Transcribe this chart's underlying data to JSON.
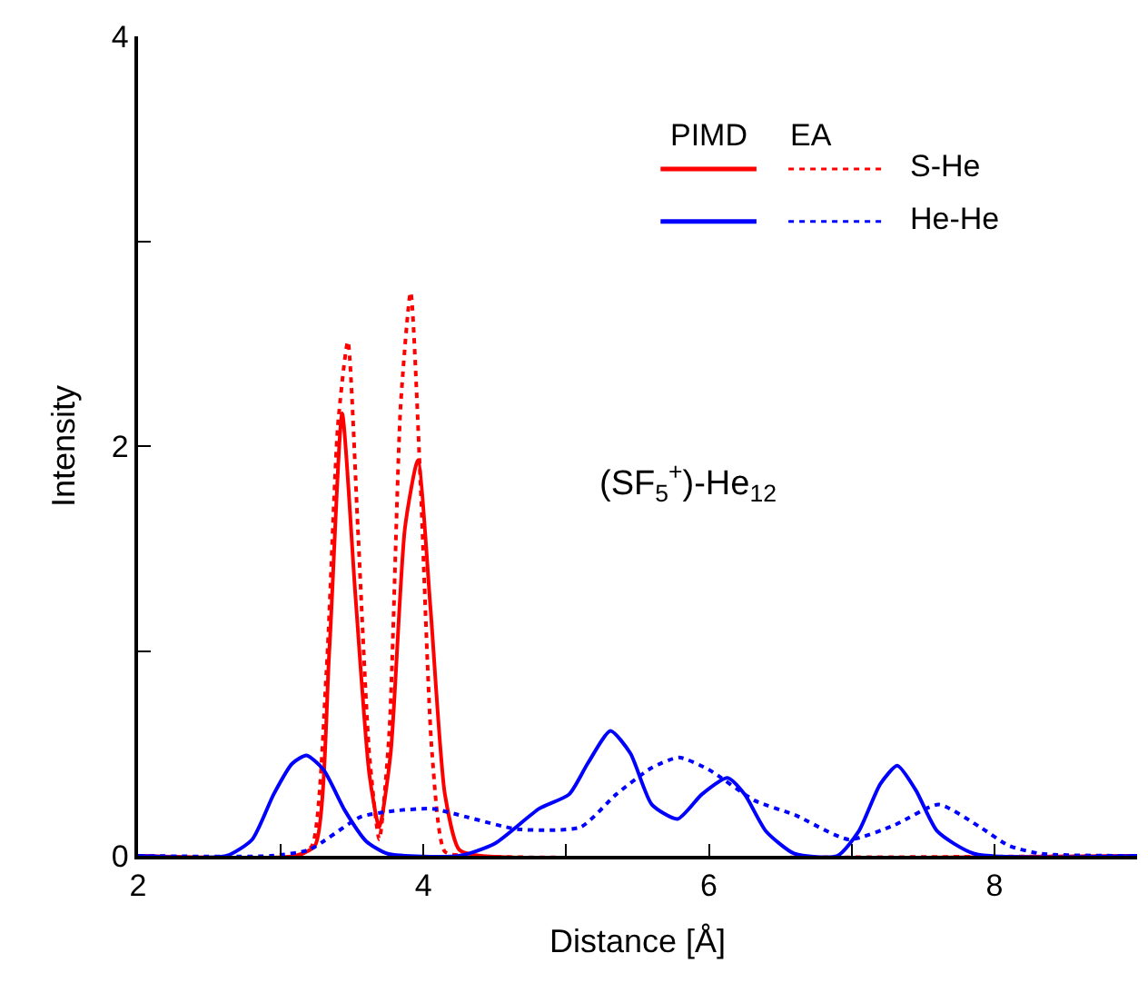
{
  "chart_data": {
    "type": "line",
    "xlabel": "Distance [Å]",
    "ylabel": "Intensity",
    "xlim": [
      2,
      9
    ],
    "xticks": [
      2,
      {
        "value": 3,
        "label": null
      },
      4,
      {
        "value": 5,
        "label": null
      },
      6,
      {
        "value": 7,
        "label": null
      },
      8
    ],
    "ylim": [
      0,
      4
    ],
    "yticks": [
      0,
      {
        "value": 1,
        "label": null
      },
      2,
      {
        "value": 3,
        "label": null
      },
      4
    ],
    "legend": "top right",
    "marker": "none",
    "annotations": [
      "PIMD",
      "EA",
      "(SF$_{5}$$^{+}$)-He$_{12}$"
    ],
    "series": [
      {
        "color": "#ff0000",
        "line_style": "solid",
        "x": [
          2,
          3.1,
          3.24,
          3.34,
          3.43,
          3.52,
          3.62,
          3.69,
          3.77,
          3.87,
          3.96,
          4.05,
          4.15,
          4.25,
          4.4,
          9
        ],
        "values": [
          0,
          0,
          0.05,
          1.0,
          2.16,
          1.3,
          0.4,
          0.14,
          0.5,
          1.6,
          1.93,
          1.2,
          0.3,
          0.03,
          0,
          0
        ]
      },
      {
        "name": "S-He",
        "color": "#ff0000",
        "line_style": "dotted",
        "x": [
          2,
          3.12,
          3.22,
          3.32,
          3.4,
          3.47,
          3.54,
          3.62,
          3.69,
          3.76,
          3.84,
          3.91,
          3.98,
          4.06,
          4.15,
          4.3,
          9
        ],
        "values": [
          0,
          0,
          0.05,
          0.9,
          2.1,
          2.51,
          1.6,
          0.5,
          0.08,
          0.6,
          2.2,
          2.75,
          1.8,
          0.5,
          0.02,
          0,
          0
        ]
      },
      {
        "color": "#0000ff",
        "line_style": "solid",
        "x": [
          2,
          2.62,
          2.8,
          2.95,
          3.08,
          3.18,
          3.3,
          3.45,
          3.6,
          3.75,
          4.25,
          4.5,
          4.81,
          5.02,
          5.15,
          5.31,
          5.45,
          5.6,
          5.78,
          5.95,
          6.13,
          6.25,
          6.4,
          6.6,
          6.9,
          7.05,
          7.2,
          7.32,
          7.45,
          7.6,
          7.86,
          9
        ],
        "values": [
          0,
          0,
          0.08,
          0.3,
          0.45,
          0.49,
          0.42,
          0.22,
          0.07,
          0.01,
          0,
          0.06,
          0.23,
          0.3,
          0.45,
          0.61,
          0.5,
          0.25,
          0.18,
          0.3,
          0.38,
          0.3,
          0.12,
          0.01,
          0,
          0.12,
          0.35,
          0.44,
          0.32,
          0.12,
          0.01,
          0
        ]
      },
      {
        "name": "He-He",
        "color": "#0000ff",
        "line_style": "dotted",
        "x": [
          2,
          2.93,
          3.2,
          3.56,
          3.8,
          4.06,
          4.3,
          4.66,
          5.1,
          5.35,
          5.6,
          5.79,
          6.0,
          6.32,
          6.6,
          6.98,
          7.3,
          7.61,
          7.9,
          8.1,
          8.33,
          9
        ],
        "values": [
          0,
          0,
          0.03,
          0.19,
          0.22,
          0.23,
          0.19,
          0.13,
          0.14,
          0.3,
          0.43,
          0.48,
          0.42,
          0.27,
          0.2,
          0.08,
          0.15,
          0.25,
          0.14,
          0.05,
          0.01,
          0
        ]
      }
    ]
  }
}
